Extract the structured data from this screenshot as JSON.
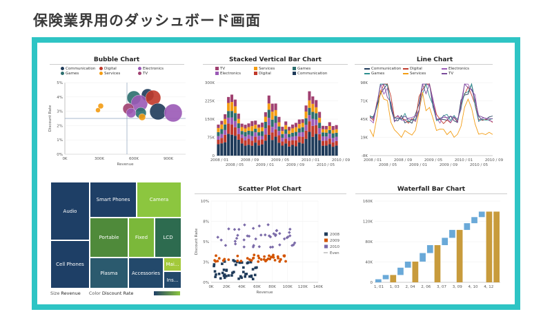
{
  "page": {
    "title": "保険業界用のダッシュボード画面"
  },
  "colors": {
    "frame": "#2ec4c4"
  },
  "bubble": {
    "title": "Bubble Chart",
    "legend": [
      {
        "label": "Communication",
        "color": "#1f3b5a"
      },
      {
        "label": "Digital",
        "color": "#c0392b"
      },
      {
        "label": "Electronics",
        "color": "#9b59b6"
      },
      {
        "label": "Games",
        "color": "#2c6e6e"
      },
      {
        "label": "Services",
        "color": "#f39c12"
      },
      {
        "label": "TV",
        "color": "#a04070"
      }
    ],
    "yticks": [
      "0%",
      "1%",
      "2%",
      "3%",
      "4%",
      "5%"
    ],
    "xticks": [
      "0K",
      "300K",
      "600K",
      "900K"
    ],
    "ylabel": "Discount Rate",
    "xlabel": "Revenue"
  },
  "stacked": {
    "title": "Stacked Vertical Bar Chart",
    "legend": [
      {
        "label": "TV",
        "color": "#a04070"
      },
      {
        "label": "Services",
        "color": "#f39c12"
      },
      {
        "label": "Games",
        "color": "#2c6e6e"
      },
      {
        "label": "Electronics",
        "color": "#9b59b6"
      },
      {
        "label": "Digital",
        "color": "#c0392b"
      },
      {
        "label": "Communication",
        "color": "#1f3b5a"
      }
    ],
    "yticks": [
      "0",
      "75K",
      "150K",
      "225K",
      "300K"
    ],
    "xticks_row1": [
      "2008 / 01",
      "2008 / 09",
      "2009 / 05",
      "2010 / 01",
      "2010 / 09"
    ],
    "xticks_row2": [
      "2008 / 05",
      "2009 / 01",
      "2009 / 09",
      "2010 / 05"
    ]
  },
  "line": {
    "title": "Line Chart",
    "legend": [
      {
        "label": "Communication",
        "color": "#1f3b5a"
      },
      {
        "label": "Digital",
        "color": "#c0392b"
      },
      {
        "label": "Electronics",
        "color": "#9b59b6"
      },
      {
        "label": "Games",
        "color": "#2c8e8e"
      },
      {
        "label": "Services",
        "color": "#f39c12"
      },
      {
        "label": "TV",
        "color": "#7a4a9a"
      }
    ],
    "yticks": [
      "-8K",
      "19K",
      "45K",
      "71K",
      "98K"
    ],
    "xticks_row1": [
      "2008 / 01",
      "2008 / 09",
      "2009 / 05",
      "2010 / 01",
      "2010 / 09"
    ],
    "xticks_row2": [
      "2008 / 05",
      "2009 / 01",
      "2009 / 09",
      "2010 / 05"
    ]
  },
  "treemap": {
    "cells": [
      {
        "label": "Audio",
        "color": "#1e3f66"
      },
      {
        "label": "Cell Phones",
        "color": "#1e3f66"
      },
      {
        "label": "Smart Phones",
        "color": "#1e3f66"
      },
      {
        "label": "Camera",
        "color": "#8cc63f"
      },
      {
        "label": "Portable",
        "color": "#4f8a3a"
      },
      {
        "label": "Fixed",
        "color": "#7bb83a"
      },
      {
        "label": "LCD",
        "color": "#2d6b4f"
      },
      {
        "label": "Plasma",
        "color": "#2b5a6e"
      },
      {
        "label": "Accessories",
        "color": "#23496b"
      },
      {
        "label": "Mai...",
        "color": "#a3c93a"
      },
      {
        "label": "Ins...",
        "color": "#23496b"
      }
    ],
    "footer": {
      "size_label": "Size",
      "size_value": "Revenue",
      "color_label": "Color",
      "color_value": "Discount Rate"
    }
  },
  "scatter": {
    "title": "Scatter Plot Chart",
    "yticks": [
      "0%",
      "3%",
      "5%",
      "8%",
      "10%"
    ],
    "xticks": [
      "0K",
      "20K",
      "40K",
      "60K",
      "80K",
      "100K",
      "120K",
      "140K"
    ],
    "ylabel": "Discount Rate",
    "xlabel": "Revenue",
    "legend": [
      {
        "label": "2008",
        "color": "#1f3b5a"
      },
      {
        "label": "2009",
        "color": "#d35400"
      },
      {
        "label": "2010",
        "color": "#7a6aa8"
      },
      {
        "label": "Even",
        "color": "#999999"
      }
    ]
  },
  "waterfall": {
    "title": "Waterfall Bar Chart",
    "yticks": [
      "0",
      "40K",
      "80K",
      "120K",
      "160K"
    ],
    "xticks": [
      "1, 01",
      "1, 03",
      "2, 04",
      "2, 06",
      "3, 07",
      "3, 09",
      "4, 10",
      "4, 12"
    ]
  }
}
